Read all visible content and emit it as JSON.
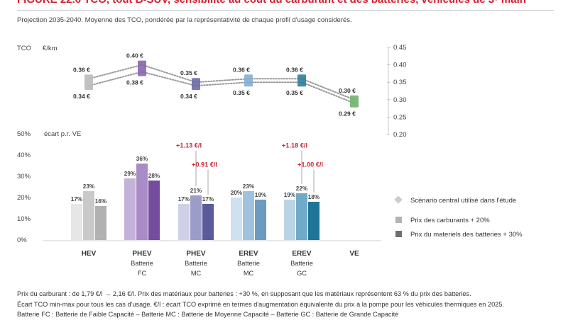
{
  "figure": {
    "title": "FIGURE 22.6  TCO, tout B-SUV, sensibilité au coût du carburant et des batteries, véhicules de 3ᵉ main",
    "subtitle": "Projection 2035-2040. Moyenne des TCO, pondérée par la représentativité de chaque profil d'usage considerés."
  },
  "chart_data": [
    {
      "type": "line",
      "ylabel": "TCO",
      "yunit": "€/km",
      "ylim": [
        0.2,
        0.45
      ],
      "yticks": [
        0.45,
        0.4,
        0.35,
        0.3,
        0.25,
        0.2
      ],
      "ytick_labels": [
        "0.45",
        "0.40",
        "0.35",
        "0.30",
        "0.25",
        "0.20"
      ],
      "categories": [
        "HEV",
        "PHEV Batterie FC",
        "PHEV Batterie MC",
        "EREV Batterie MC",
        "EREV Batterie GC",
        "VE"
      ],
      "series": [
        {
          "values": [
            0.36,
            0.4,
            0.35,
            0.36,
            0.36,
            0.3
          ],
          "labels": [
            "0.36 €",
            "0.40 €",
            "0.35 €",
            "0.36 €",
            "0.36 €",
            "0.30 €"
          ]
        },
        {
          "values": [
            0.34,
            0.38,
            0.34,
            0.35,
            0.35,
            0.29
          ],
          "labels": [
            "0.34 €",
            "0.38 €",
            "0.34 €",
            "0.35 €",
            "0.35 €",
            "0.29 €"
          ]
        }
      ],
      "marker_colors": [
        "#bbbbbb",
        "#8a64ad",
        "#6d6aa8",
        "#84aed1",
        "#2d7f9e",
        "#6fb36e"
      ],
      "connector_color": "#999999"
    },
    {
      "type": "bar",
      "ylabel": "écart p.r. VE",
      "ylim": [
        0,
        50
      ],
      "yticks": [
        0,
        10,
        20,
        30,
        40,
        50
      ],
      "ytick_labels": [
        "0%",
        "10%",
        "20%",
        "30%",
        "40%",
        "50%"
      ],
      "category_labels": [
        [
          "HEV"
        ],
        [
          "PHEV",
          "Batterie",
          "FC"
        ],
        [
          "PHEV",
          "Batterie",
          "MC"
        ],
        [
          "EREV",
          "Batterie",
          "MC"
        ],
        [
          "EREV",
          "Batterie",
          "GC"
        ],
        [
          "VE"
        ]
      ],
      "series": [
        {
          "name": "Scénario central utilisé dans l'étude",
          "values": [
            17,
            29,
            17,
            20,
            19,
            0
          ]
        },
        {
          "name": "Prix des carburants + 20%",
          "values": [
            23,
            36,
            21,
            23,
            22,
            0
          ]
        },
        {
          "name": "Prix du materiels des batteries + 30%",
          "values": [
            16,
            28,
            17,
            19,
            18,
            0
          ]
        }
      ],
      "value_labels": [
        [
          "17%",
          "23%",
          "16%"
        ],
        [
          "29%",
          "36%",
          "28%"
        ],
        [
          "17%",
          "21%",
          "17%"
        ],
        [
          "20%",
          "23%",
          "19%"
        ],
        [
          "19%",
          "22%",
          "18%"
        ],
        [
          "",
          "",
          ""
        ]
      ],
      "group_colors": [
        [
          "#e6e6e6",
          "#c9c9c9",
          "#b1b1b1"
        ],
        [
          "#c5b2d8",
          "#a98cc7",
          "#744d9e"
        ],
        [
          "#cfd0e6",
          "#9c9cc9",
          "#5a5a9c"
        ],
        [
          "#cfe0ef",
          "#9fc3df",
          "#6b9bc1"
        ],
        [
          "#bad4e3",
          "#6faac9",
          "#1f7595"
        ],
        [
          "#ffffff",
          "#ffffff",
          "#ffffff"
        ]
      ],
      "annotations": [
        {
          "category": 2,
          "series": 1,
          "text": "+1.13 €/l",
          "color": "#c8283a"
        },
        {
          "category": 2,
          "series": 2,
          "text": "+0.91 €/l",
          "color": "#c8283a"
        },
        {
          "category": 4,
          "series": 1,
          "text": "+1.18 €/l",
          "color": "#c8283a"
        },
        {
          "category": 4,
          "series": 2,
          "text": "+1.00 €/l",
          "color": "#c8283a"
        }
      ],
      "legend": {
        "position": "right",
        "items": [
          {
            "label": "Scénario central utilisé dans l'étude",
            "shape": "diamond",
            "color": "#cccccc"
          },
          {
            "label": "Prix des carburants + 20%",
            "shape": "square",
            "color": "#b3b3b3"
          },
          {
            "label": "Prix du materiels des batteries + 30%",
            "shape": "square",
            "color": "#6f6f6f"
          }
        ]
      }
    }
  ],
  "notes": {
    "line1": "Prix du carburant : de 1,79 €/l → 2,16 €/l. Prix des matériaux pour batteries : +30 %, en supposant que les matériaux représentent 63 % du prix des batteries.",
    "line2": "Écart TCO min-max pour tous les cas d'usage. €/l : écart TCO exprimé en termes d'augmentation équivalente du prix à la pompe pour les véhicules thermiques en 2025.",
    "line3": "Batterie FC : Batterie de Faible Capacité – Batterie MC : Batterie de Moyenne Capacité – Batterie GC : Batterie de Grande Capacité"
  }
}
